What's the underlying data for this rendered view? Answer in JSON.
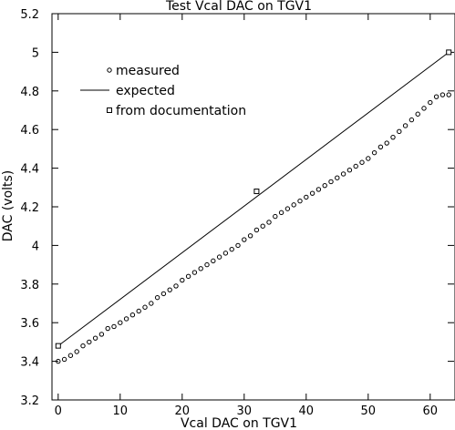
{
  "chart_data": {
    "type": "scatter",
    "title": "Test Vcal DAC on TGV1",
    "xlabel": "Vcal DAC on TGV1",
    "ylabel": "DAC (volts)",
    "xlim": [
      -1,
      64
    ],
    "ylim": [
      3.2,
      5.2
    ],
    "x_ticks": [
      0,
      10,
      20,
      30,
      40,
      50,
      60
    ],
    "y_ticks": [
      3.2,
      3.4,
      3.6,
      3.8,
      4.0,
      4.2,
      4.4,
      4.6,
      4.8,
      5.0,
      5.2
    ],
    "x_tick_labels": [
      "0",
      "10",
      "20",
      "30",
      "40",
      "50",
      "60"
    ],
    "y_tick_labels": [
      "3.2",
      "3.4",
      "3.6",
      "3.8",
      "4",
      "4.2",
      "4.4",
      "4.6",
      "4.8",
      "5",
      "5.2"
    ],
    "grid": false,
    "legend_position": "top-left",
    "legend": [
      {
        "label": "measured",
        "marker": "circle"
      },
      {
        "label": "expected",
        "marker": "line"
      },
      {
        "label": "from documentation",
        "marker": "square"
      }
    ],
    "series": [
      {
        "name": "measured",
        "marker": "circle",
        "x": [
          0,
          1,
          2,
          3,
          4,
          5,
          6,
          7,
          8,
          9,
          10,
          11,
          12,
          13,
          14,
          15,
          16,
          17,
          18,
          19,
          20,
          21,
          22,
          23,
          24,
          25,
          26,
          27,
          28,
          29,
          30,
          31,
          32,
          33,
          34,
          35,
          36,
          37,
          38,
          39,
          40,
          41,
          42,
          43,
          44,
          45,
          46,
          47,
          48,
          49,
          50,
          51,
          52,
          53,
          54,
          55,
          56,
          57,
          58,
          59,
          60,
          61,
          62,
          63
        ],
        "y": [
          3.4,
          3.41,
          3.43,
          3.45,
          3.48,
          3.5,
          3.52,
          3.54,
          3.57,
          3.58,
          3.6,
          3.62,
          3.64,
          3.66,
          3.68,
          3.7,
          3.73,
          3.75,
          3.77,
          3.79,
          3.82,
          3.84,
          3.86,
          3.88,
          3.9,
          3.92,
          3.94,
          3.96,
          3.98,
          4.0,
          4.03,
          4.05,
          4.08,
          4.1,
          4.12,
          4.15,
          4.17,
          4.19,
          4.21,
          4.23,
          4.25,
          4.27,
          4.29,
          4.31,
          4.33,
          4.35,
          4.37,
          4.39,
          4.41,
          4.43,
          4.45,
          4.48,
          4.51,
          4.53,
          4.56,
          4.59,
          4.62,
          4.65,
          4.68,
          4.71,
          4.74,
          4.77,
          4.78,
          4.78
        ]
      },
      {
        "name": "expected",
        "marker": "line",
        "x": [
          0,
          63
        ],
        "y": [
          3.48,
          5.0
        ]
      },
      {
        "name": "from documentation",
        "marker": "square",
        "x": [
          0,
          32,
          63
        ],
        "y": [
          3.48,
          4.28,
          5.0
        ]
      }
    ]
  }
}
